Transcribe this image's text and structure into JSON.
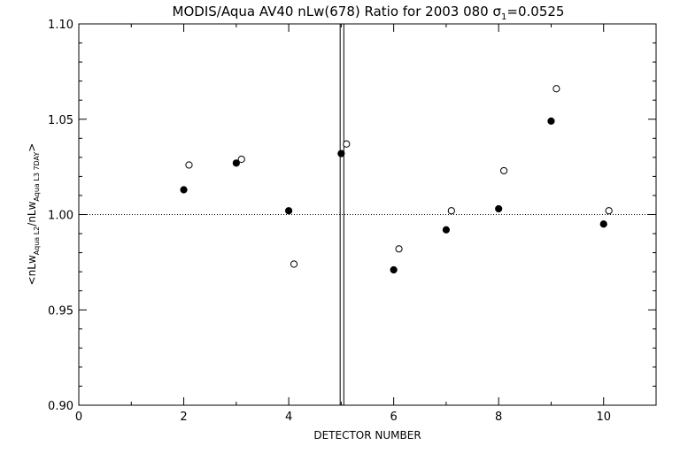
{
  "chart_data": {
    "type": "scatter",
    "title": {
      "main": "MODIS/Aqua AV40 nLw(678) Ratio for 2003 080 ",
      "sigma_symbol": "σ",
      "sigma_subscript": "1",
      "sigma_value": "=0.0525"
    },
    "xlabel": "DETECTOR NUMBER",
    "ylabel": {
      "open": "<nLw",
      "sub1": "Aqua L2",
      "mid": "/nLw",
      "sub2": "Aqua L3 7DAY",
      "close": ">"
    },
    "xlim": [
      0,
      11
    ],
    "ylim": [
      0.9,
      1.1
    ],
    "x_ticks": [
      {
        "value": 0,
        "label": "0"
      },
      {
        "value": 2,
        "label": "2"
      },
      {
        "value": 4,
        "label": "4"
      },
      {
        "value": 6,
        "label": "6"
      },
      {
        "value": 8,
        "label": "8"
      },
      {
        "value": 10,
        "label": "10"
      }
    ],
    "y_ticks": [
      {
        "value": 0.9,
        "label": "0.90"
      },
      {
        "value": 0.95,
        "label": "0.95"
      },
      {
        "value": 1.0,
        "label": "1.00"
      },
      {
        "value": 1.05,
        "label": "1.05"
      },
      {
        "value": 1.1,
        "label": "1.10"
      }
    ],
    "reference_line_y": 1.0,
    "vertical_lines_x": [
      4.98,
      5.05
    ],
    "series": [
      {
        "marker": "filled-circle",
        "points": [
          {
            "x": 2.0,
            "y": 1.013
          },
          {
            "x": 3.0,
            "y": 1.027
          },
          {
            "x": 4.0,
            "y": 1.002
          },
          {
            "x": 5.0,
            "y": 1.032
          },
          {
            "x": 6.0,
            "y": 0.971
          },
          {
            "x": 7.0,
            "y": 0.992
          },
          {
            "x": 8.0,
            "y": 1.003
          },
          {
            "x": 9.0,
            "y": 1.049
          },
          {
            "x": 10.0,
            "y": 0.995
          }
        ]
      },
      {
        "marker": "open-circle",
        "points": [
          {
            "x": 2.1,
            "y": 1.026
          },
          {
            "x": 3.1,
            "y": 1.029
          },
          {
            "x": 4.1,
            "y": 0.974
          },
          {
            "x": 5.1,
            "y": 1.037
          },
          {
            "x": 6.1,
            "y": 0.982
          },
          {
            "x": 7.1,
            "y": 1.002
          },
          {
            "x": 8.1,
            "y": 1.023
          },
          {
            "x": 9.1,
            "y": 1.066
          },
          {
            "x": 10.1,
            "y": 1.002
          }
        ]
      }
    ],
    "colors": {
      "foreground": "#000000",
      "background": "#ffffff"
    }
  }
}
